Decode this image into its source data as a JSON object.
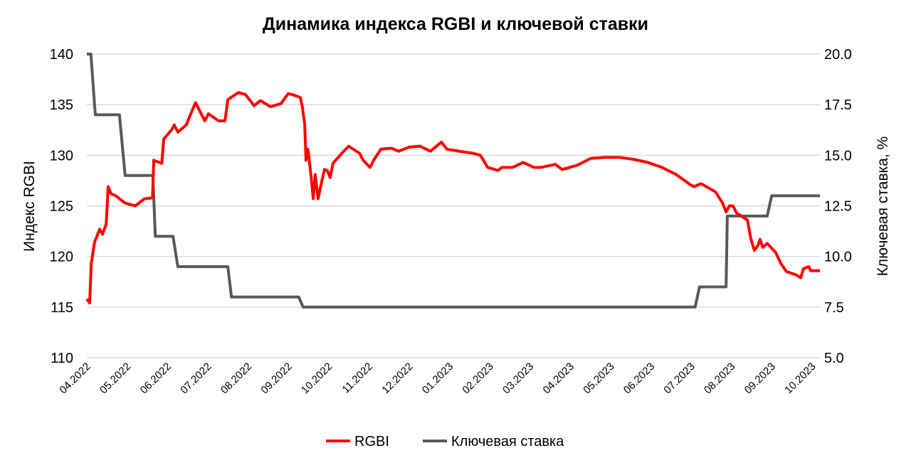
{
  "chart_data": {
    "type": "line",
    "title": "Динамика индекса RGBI и ключевой ставки",
    "ylabel": "Индекс RGBI",
    "y2label": "Ключевая ставка, %",
    "ylim": [
      110,
      140
    ],
    "y2lim": [
      5.0,
      20.0
    ],
    "yticks": [
      "110",
      "115",
      "120",
      "125",
      "130",
      "135",
      "140"
    ],
    "y2ticks": [
      "5.0",
      "7.5",
      "10.0",
      "12.5",
      "15.0",
      "17.5",
      "20.0"
    ],
    "x_unit": "months since 04.2022",
    "xlim": [
      0,
      18.2
    ],
    "categories": [
      "04.2022",
      "05.2022",
      "06.2022",
      "07.2022",
      "08.2022",
      "09.2022",
      "10.2022",
      "11.2022",
      "12.2022",
      "01.2023",
      "02.2023",
      "03.2023",
      "04.2023",
      "05.2023",
      "06.2023",
      "07.2023",
      "08.2023",
      "09.2023",
      "10.2023"
    ],
    "grid": true,
    "legend_position": "bottom",
    "series": [
      {
        "name": "RGBI",
        "axis": "left",
        "color": "#ff0000",
        "points": [
          [
            0,
            115.8
          ],
          [
            0.07,
            115.4
          ],
          [
            0.11,
            119.3
          ],
          [
            0.19,
            121.4
          ],
          [
            0.32,
            122.7
          ],
          [
            0.39,
            122.2
          ],
          [
            0.48,
            123.2
          ],
          [
            0.53,
            126.9
          ],
          [
            0.6,
            126.2
          ],
          [
            0.72,
            126.0
          ],
          [
            0.94,
            125.3
          ],
          [
            1.2,
            125.0
          ],
          [
            1.43,
            125.7
          ],
          [
            1.63,
            125.8
          ],
          [
            1.66,
            129.5
          ],
          [
            1.86,
            129.2
          ],
          [
            1.91,
            131.6
          ],
          [
            2.12,
            132.6
          ],
          [
            2.17,
            133.0
          ],
          [
            2.26,
            132.3
          ],
          [
            2.47,
            133.0
          ],
          [
            2.58,
            134.1
          ],
          [
            2.7,
            135.2
          ],
          [
            2.84,
            134.1
          ],
          [
            2.93,
            133.4
          ],
          [
            3.02,
            134.1
          ],
          [
            3.27,
            133.4
          ],
          [
            3.43,
            133.4
          ],
          [
            3.5,
            135.5
          ],
          [
            3.76,
            136.2
          ],
          [
            3.94,
            136.0
          ],
          [
            4.15,
            134.9
          ],
          [
            4.31,
            135.4
          ],
          [
            4.56,
            134.8
          ],
          [
            4.82,
            135.1
          ],
          [
            5.0,
            136.1
          ],
          [
            5.18,
            135.9
          ],
          [
            5.3,
            135.7
          ],
          [
            5.35,
            134.8
          ],
          [
            5.41,
            133.0
          ],
          [
            5.44,
            129.5
          ],
          [
            5.49,
            130.6
          ],
          [
            5.57,
            127.8
          ],
          [
            5.62,
            125.7
          ],
          [
            5.67,
            128.1
          ],
          [
            5.74,
            125.7
          ],
          [
            5.83,
            127.4
          ],
          [
            5.9,
            128.6
          ],
          [
            5.97,
            128.5
          ],
          [
            6.04,
            127.8
          ],
          [
            6.11,
            129.2
          ],
          [
            6.33,
            130.2
          ],
          [
            6.5,
            130.9
          ],
          [
            6.77,
            130.2
          ],
          [
            6.86,
            129.5
          ],
          [
            7.03,
            128.8
          ],
          [
            7.12,
            129.5
          ],
          [
            7.3,
            130.6
          ],
          [
            7.56,
            130.7
          ],
          [
            7.74,
            130.4
          ],
          [
            8.0,
            130.8
          ],
          [
            8.27,
            130.9
          ],
          [
            8.53,
            130.4
          ],
          [
            8.8,
            131.3
          ],
          [
            8.94,
            130.6
          ],
          [
            9.24,
            130.4
          ],
          [
            9.59,
            130.2
          ],
          [
            9.77,
            130.0
          ],
          [
            9.95,
            128.8
          ],
          [
            10.21,
            128.5
          ],
          [
            10.3,
            128.8
          ],
          [
            10.57,
            128.8
          ],
          [
            10.83,
            129.3
          ],
          [
            11.1,
            128.8
          ],
          [
            11.27,
            128.8
          ],
          [
            11.63,
            129.1
          ],
          [
            11.8,
            128.6
          ],
          [
            12.16,
            129.0
          ],
          [
            12.51,
            129.7
          ],
          [
            12.86,
            129.8
          ],
          [
            13.22,
            129.8
          ],
          [
            13.57,
            129.6
          ],
          [
            13.92,
            129.3
          ],
          [
            14.28,
            128.8
          ],
          [
            14.63,
            128.1
          ],
          [
            14.98,
            127.1
          ],
          [
            15.07,
            126.9
          ],
          [
            15.25,
            127.2
          ],
          [
            15.6,
            126.4
          ],
          [
            15.78,
            125.3
          ],
          [
            15.87,
            124.4
          ],
          [
            15.95,
            125.0
          ],
          [
            16.04,
            125.0
          ],
          [
            16.13,
            124.3
          ],
          [
            16.4,
            123.6
          ],
          [
            16.48,
            121.8
          ],
          [
            16.57,
            120.6
          ],
          [
            16.66,
            121.1
          ],
          [
            16.71,
            121.7
          ],
          [
            16.78,
            120.9
          ],
          [
            16.89,
            121.3
          ],
          [
            17.1,
            120.4
          ],
          [
            17.23,
            119.3
          ],
          [
            17.37,
            118.5
          ],
          [
            17.6,
            118.2
          ],
          [
            17.72,
            117.9
          ],
          [
            17.79,
            118.8
          ],
          [
            17.92,
            119.0
          ],
          [
            17.97,
            118.6
          ],
          [
            18.2,
            118.6
          ]
        ]
      },
      {
        "name": "Ключевая ставка",
        "axis": "right",
        "color": "#595959",
        "points": [
          [
            0,
            20.0
          ],
          [
            0.1,
            20.0
          ],
          [
            0.21,
            17.0
          ],
          [
            0.81,
            17.0
          ],
          [
            0.95,
            14.0
          ],
          [
            1.64,
            14.0
          ],
          [
            1.7,
            11.0
          ],
          [
            2.14,
            11.0
          ],
          [
            2.26,
            9.5
          ],
          [
            3.5,
            9.5
          ],
          [
            3.59,
            8.0
          ],
          [
            5.26,
            8.0
          ],
          [
            5.37,
            7.5
          ],
          [
            15.1,
            7.5
          ],
          [
            15.21,
            8.5
          ],
          [
            15.87,
            8.5
          ],
          [
            15.9,
            12.0
          ],
          [
            16.89,
            12.0
          ],
          [
            17.0,
            13.0
          ],
          [
            18.2,
            13.0
          ]
        ]
      }
    ]
  }
}
